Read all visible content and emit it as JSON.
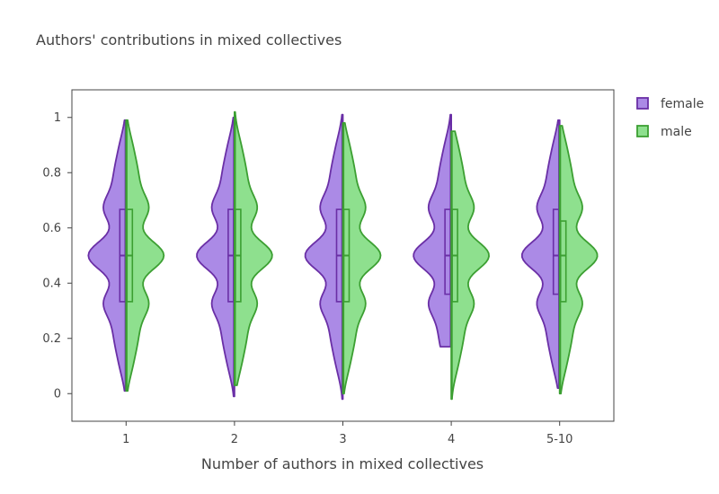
{
  "chart_data": {
    "type": "violin",
    "title": "Authors' contributions in mixed collectives",
    "xlabel": "Number of authors in mixed collectives",
    "ylabel": "",
    "categories": [
      "1",
      "2",
      "3",
      "4",
      "5-10"
    ],
    "ylim": [
      -0.1,
      1.1
    ],
    "yticks": [
      "0",
      "0.2",
      "0.4",
      "0.6",
      "0.8",
      "1"
    ],
    "grid": false,
    "legend_position": "top-right",
    "legend": [
      "female",
      "male"
    ],
    "series": [
      {
        "name": "female",
        "side": "negative",
        "fill_color": "#ab8ae6",
        "line_color": "#6a2fa6",
        "summary": [
          {
            "min": 0.01,
            "q1": 0.333,
            "median": 0.5,
            "q3": 0.667,
            "max": 0.99
          },
          {
            "min": -0.01,
            "q1": 0.333,
            "median": 0.5,
            "q3": 0.667,
            "max": 1.0
          },
          {
            "min": -0.02,
            "q1": 0.333,
            "median": 0.5,
            "q3": 0.667,
            "max": 1.01
          },
          {
            "min": 0.17,
            "q1": 0.36,
            "median": 0.5,
            "q3": 0.667,
            "max": 1.01
          },
          {
            "min": 0.02,
            "q1": 0.36,
            "median": 0.5,
            "q3": 0.667,
            "max": 0.99
          }
        ]
      },
      {
        "name": "male",
        "side": "positive",
        "fill_color": "#8ee08e",
        "line_color": "#3c9f32",
        "summary": [
          {
            "min": 0.01,
            "q1": 0.333,
            "median": 0.5,
            "q3": 0.667,
            "max": 0.99
          },
          {
            "min": 0.03,
            "q1": 0.333,
            "median": 0.5,
            "q3": 0.667,
            "max": 1.02
          },
          {
            "min": 0.0,
            "q1": 0.333,
            "median": 0.5,
            "q3": 0.667,
            "max": 0.98
          },
          {
            "min": -0.02,
            "q1": 0.333,
            "median": 0.5,
            "q3": 0.667,
            "max": 0.95
          },
          {
            "min": 0.0,
            "q1": 0.333,
            "median": 0.5,
            "q3": 0.625,
            "max": 0.97
          }
        ]
      }
    ]
  }
}
